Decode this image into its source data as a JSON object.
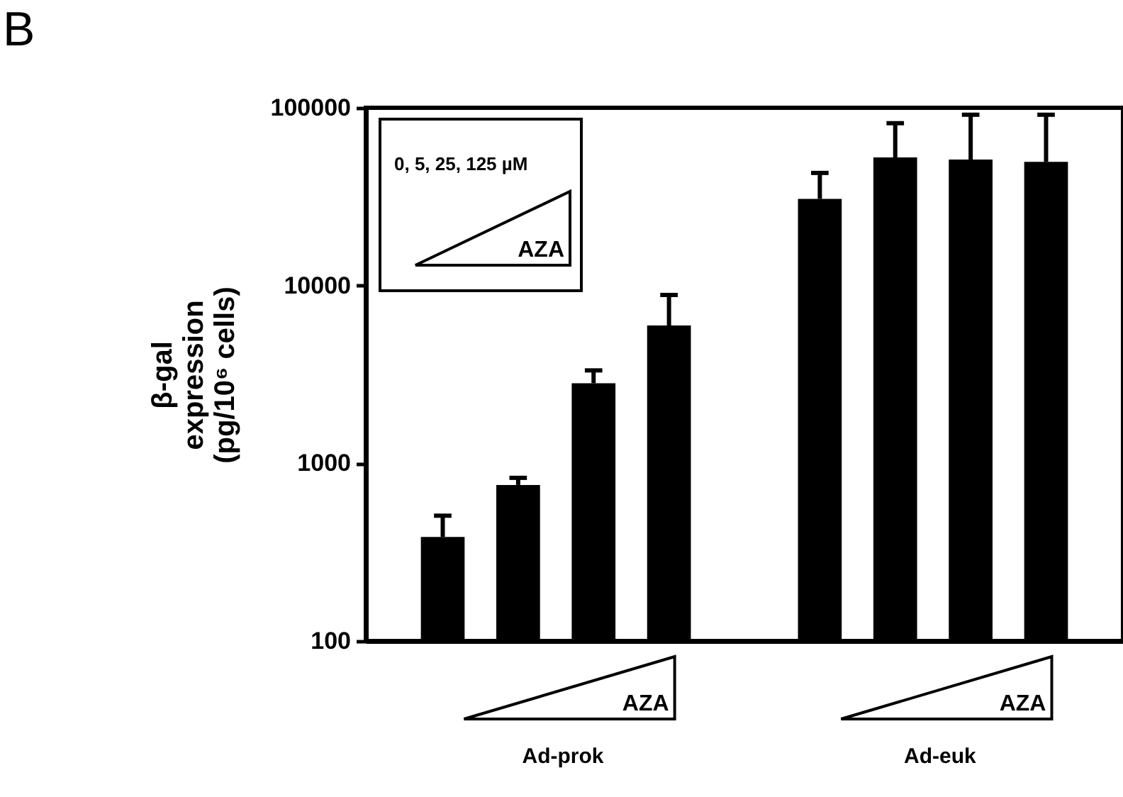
{
  "chart_data": {
    "type": "bar",
    "title": "B",
    "ylabel": "β-gal\nexpression\n(pg/10⁶ cells)",
    "categories": [
      null,
      null,
      null,
      null,
      null,
      null,
      null,
      null,
      null
    ],
    "values": [
      385,
      755,
      2820,
      5960,
      null,
      30700,
      52600,
      51100,
      49600
    ],
    "errors": [
      [
        385,
        507
      ],
      [
        755,
        828
      ],
      [
        2820,
        3330
      ],
      [
        5960,
        8850
      ],
      null,
      [
        30700,
        43000
      ],
      [
        52600,
        81900
      ],
      [
        51100,
        91400
      ],
      [
        49600,
        91400
      ]
    ],
    "color": "#000000",
    "log": "y",
    "ylim": [
      100,
      100000
    ],
    "yticks": [
      100,
      1000,
      10000,
      100000
    ],
    "grid": false,
    "tick_labels": "y",
    "annotations": [
      "0, 5, 25, 125 µM",
      "AZA",
      "AZA",
      "Ad-prok",
      "AZA",
      "Ad-euk"
    ]
  }
}
